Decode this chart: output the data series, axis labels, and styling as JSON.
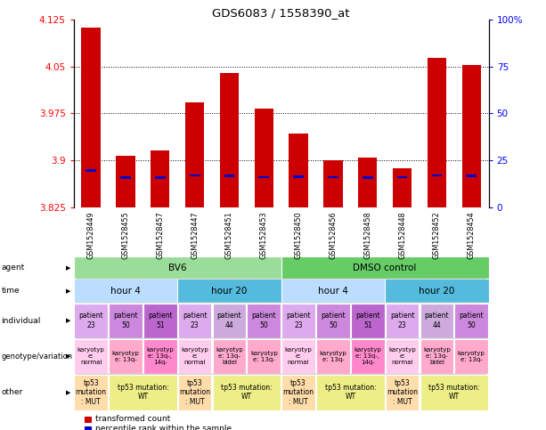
{
  "title": "GDS6083 / 1558390_at",
  "samples": [
    "GSM1528449",
    "GSM1528455",
    "GSM1528457",
    "GSM1528447",
    "GSM1528451",
    "GSM1528453",
    "GSM1528450",
    "GSM1528456",
    "GSM1528458",
    "GSM1528448",
    "GSM1528452",
    "GSM1528454"
  ],
  "bar_values": [
    4.112,
    3.907,
    3.916,
    3.993,
    4.04,
    3.983,
    3.942,
    3.9,
    3.905,
    3.887,
    4.063,
    4.052
  ],
  "blue_values": [
    3.884,
    3.872,
    3.872,
    3.876,
    3.875,
    3.873,
    3.874,
    3.873,
    3.872,
    3.873,
    3.876,
    3.875
  ],
  "ymin": 3.825,
  "ymax": 4.125,
  "yticks": [
    3.825,
    3.9,
    3.975,
    4.05,
    4.125
  ],
  "ytick_labels": [
    "3.825",
    "3.9",
    "3.975",
    "4.05",
    "4.125"
  ],
  "right_ytick_labels": [
    "0",
    "25",
    "50",
    "75",
    "100%"
  ],
  "grid_lines": [
    3.9,
    3.975,
    4.05
  ],
  "bar_color": "#cc0000",
  "blue_color": "#0000cc",
  "agent_groups": [
    {
      "text": "BV6",
      "start": 0,
      "end": 6,
      "color": "#99dd99"
    },
    {
      "text": "DMSO control",
      "start": 6,
      "end": 12,
      "color": "#66cc66"
    }
  ],
  "time_groups": [
    {
      "text": "hour 4",
      "start": 0,
      "end": 3,
      "color": "#bbddff"
    },
    {
      "text": "hour 20",
      "start": 3,
      "end": 6,
      "color": "#55bbdd"
    },
    {
      "text": "hour 4",
      "start": 6,
      "end": 9,
      "color": "#bbddff"
    },
    {
      "text": "hour 20",
      "start": 9,
      "end": 12,
      "color": "#55bbdd"
    }
  ],
  "individual_cells": [
    {
      "text": "patient\n23",
      "color": "#ddaaee"
    },
    {
      "text": "patient\n50",
      "color": "#cc88dd"
    },
    {
      "text": "patient\n51",
      "color": "#bb66cc"
    },
    {
      "text": "patient\n23",
      "color": "#ddaaee"
    },
    {
      "text": "patient\n44",
      "color": "#ccaadd"
    },
    {
      "text": "patient\n50",
      "color": "#cc88dd"
    },
    {
      "text": "patient\n23",
      "color": "#ddaaee"
    },
    {
      "text": "patient\n50",
      "color": "#cc88dd"
    },
    {
      "text": "patient\n51",
      "color": "#bb66cc"
    },
    {
      "text": "patient\n23",
      "color": "#ddaaee"
    },
    {
      "text": "patient\n44",
      "color": "#ccaadd"
    },
    {
      "text": "patient\n50",
      "color": "#cc88dd"
    }
  ],
  "genotype_cells": [
    {
      "text": "karyotyp\ne:\nnormal",
      "color": "#ffccee"
    },
    {
      "text": "karyotyp\ne: 13q-",
      "color": "#ffaacc"
    },
    {
      "text": "karyotyp\ne: 13q-,\n14q-",
      "color": "#ff88cc"
    },
    {
      "text": "karyotyp\ne:\nnormal",
      "color": "#ffccee"
    },
    {
      "text": "karyotyp\ne: 13q-\nbidel",
      "color": "#ffaacc"
    },
    {
      "text": "karyotyp\ne: 13q-",
      "color": "#ffaacc"
    },
    {
      "text": "karyotyp\ne:\nnormal",
      "color": "#ffccee"
    },
    {
      "text": "karyotyp\ne: 13q-",
      "color": "#ffaacc"
    },
    {
      "text": "karyotyp\ne: 13q-,\n14q-",
      "color": "#ff88cc"
    },
    {
      "text": "karyotyp\ne:\nnormal",
      "color": "#ffccee"
    },
    {
      "text": "karyotyp\ne: 13q-\nbidel",
      "color": "#ffaacc"
    },
    {
      "text": "karyotyp\ne: 13q-",
      "color": "#ffaacc"
    }
  ],
  "other_groups": [
    {
      "text": "tp53\nmutation\n: MUT",
      "start": 0,
      "end": 1,
      "color": "#ffddaa"
    },
    {
      "text": "tp53 mutation:\nWT",
      "start": 1,
      "end": 3,
      "color": "#eeee88"
    },
    {
      "text": "tp53\nmutation\n: MUT",
      "start": 3,
      "end": 4,
      "color": "#ffddaa"
    },
    {
      "text": "tp53 mutation:\nWT",
      "start": 4,
      "end": 6,
      "color": "#eeee88"
    },
    {
      "text": "tp53\nmutation\n: MUT",
      "start": 6,
      "end": 7,
      "color": "#ffddaa"
    },
    {
      "text": "tp53 mutation:\nWT",
      "start": 7,
      "end": 9,
      "color": "#eeee88"
    },
    {
      "text": "tp53\nmutation\n: MUT",
      "start": 9,
      "end": 10,
      "color": "#ffddaa"
    },
    {
      "text": "tp53 mutation:\nWT",
      "start": 10,
      "end": 12,
      "color": "#eeee88"
    }
  ],
  "row_labels": [
    "agent",
    "time",
    "individual",
    "genotype/variation",
    "other"
  ],
  "legend": [
    {
      "label": "transformed count",
      "color": "#cc0000"
    },
    {
      "label": "percentile rank within the sample",
      "color": "#0000cc"
    }
  ]
}
